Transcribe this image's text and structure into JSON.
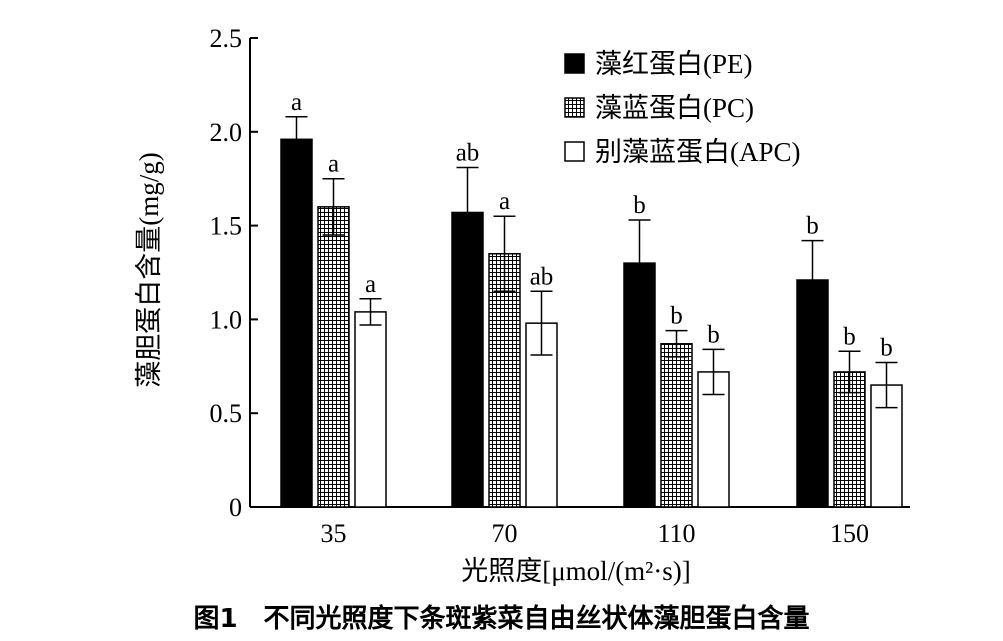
{
  "chart_data": {
    "type": "bar",
    "ylabel": "藻胆蛋白含量(mg/g)",
    "xlabel": "光照度[μmol/(m²·s)]",
    "categories": [
      "35",
      "70",
      "110",
      "150"
    ],
    "ylim": [
      0,
      2.5
    ],
    "yticks": [
      "0",
      "0.5",
      "1.0",
      "1.5",
      "2.0",
      "2.5"
    ],
    "ytick_values": [
      0,
      0.5,
      1.0,
      1.5,
      2.0,
      2.5
    ],
    "legend_position": "top-right",
    "grid": false,
    "series": [
      {
        "name": "藻红蛋白(PE)",
        "fill": "solid-black",
        "values": [
          1.96,
          1.57,
          1.3,
          1.21
        ],
        "errors": [
          0.12,
          0.24,
          0.23,
          0.21
        ],
        "labels": [
          "a",
          "ab",
          "b",
          "b"
        ]
      },
      {
        "name": "藻蓝蛋白(PC)",
        "fill": "grid-hatch",
        "values": [
          1.6,
          1.35,
          0.87,
          0.72
        ],
        "errors": [
          0.15,
          0.2,
          0.07,
          0.11
        ],
        "labels": [
          "a",
          "a",
          "b",
          "b"
        ]
      },
      {
        "name": "别藻蓝蛋白(APC)",
        "fill": "white",
        "values": [
          1.04,
          0.98,
          0.72,
          0.65
        ],
        "errors": [
          0.07,
          0.17,
          0.12,
          0.12
        ],
        "labels": [
          "a",
          "ab",
          "b",
          "b"
        ]
      }
    ]
  },
  "caption": "图1　不同光照度下条斑紫菜自由丝状体藻胆蛋白含量",
  "colors": {
    "ink": "#000000",
    "background": "#ffffff"
  }
}
